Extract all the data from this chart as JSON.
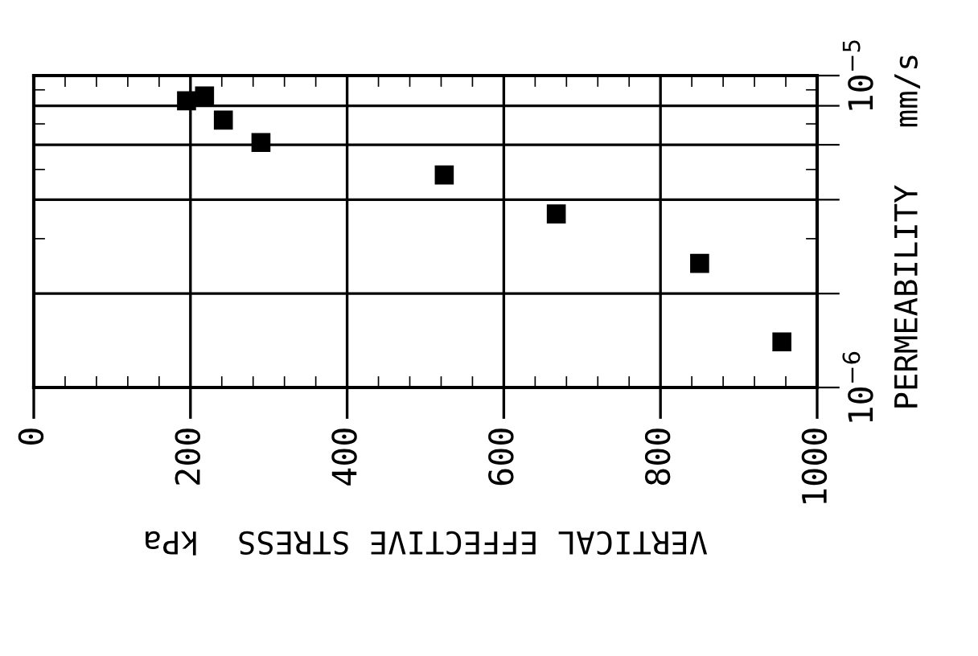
{
  "chart_data": {
    "type": "scatter",
    "xlabel": "VERTICAL EFFECTIVE STRESS  kPa",
    "ylabel": "PERMEABILITY   mm/s",
    "x": [
      195,
      218,
      242,
      290,
      524,
      667,
      850,
      955
    ],
    "series": [
      {
        "color": "#000000",
        "values": [
          8.3e-06,
          8.6e-06,
          7.2e-06,
          6.1e-06,
          4.8e-06,
          3.6e-06,
          2.5e-06,
          1.4e-06
        ]
      }
    ],
    "marker": "square",
    "log": "y",
    "xlim": [
      0,
      1000
    ],
    "xticks": [
      0,
      200,
      400,
      600,
      800,
      1000
    ],
    "ylim": [
      1e-06,
      1e-05
    ],
    "yticks": [
      {
        "value": 1e-06,
        "label": "10$^{−6}$"
      },
      {
        "value": 2e-06,
        "label": null
      },
      {
        "value": 4e-06,
        "label": null
      },
      {
        "value": 6e-06,
        "label": null
      },
      {
        "value": 8e-06,
        "label": null
      },
      {
        "value": 1e-05,
        "label": "10$^{−5}$"
      }
    ],
    "grid": true,
    "legend": false
  }
}
